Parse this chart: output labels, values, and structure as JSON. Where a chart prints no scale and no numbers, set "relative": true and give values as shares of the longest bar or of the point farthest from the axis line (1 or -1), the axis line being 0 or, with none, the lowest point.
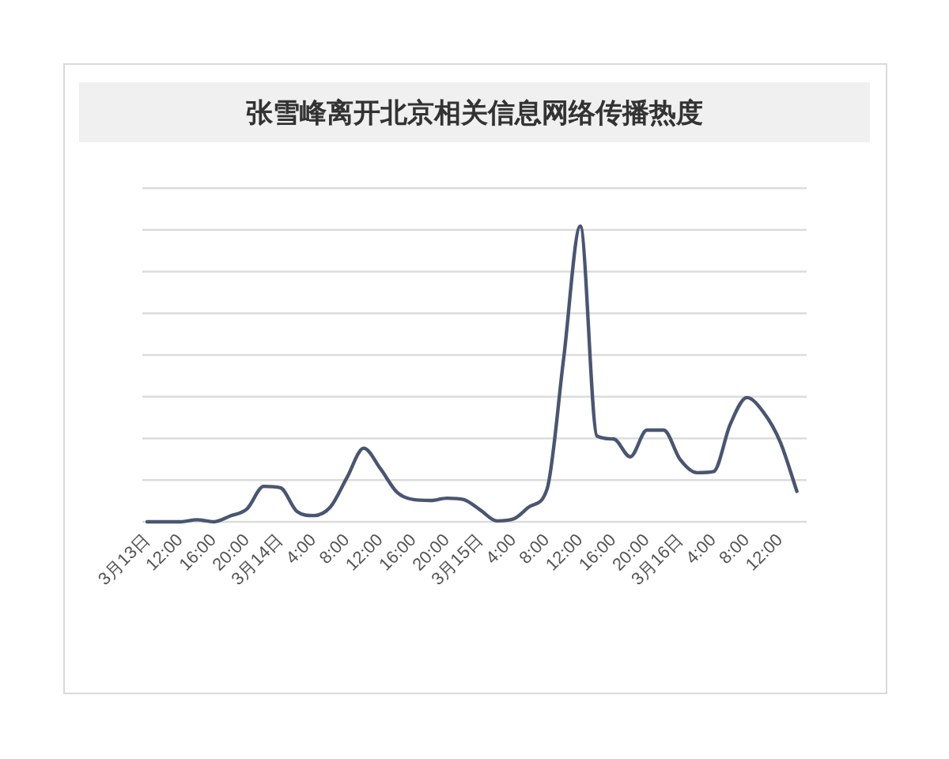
{
  "chart_data": {
    "type": "line",
    "title": "张雪峰离开北京相关信息网络传播热度",
    "relative": true,
    "grid": "y",
    "marker": "none",
    "line_style": "solid",
    "categories": [
      "3月13日",
      null,
      "12:00",
      null,
      "16:00",
      null,
      "20:00",
      null,
      "3月14日",
      null,
      "4:00",
      null,
      "8:00",
      null,
      "12:00",
      null,
      "16:00",
      null,
      "20:00",
      null,
      "3月15日",
      null,
      "4:00",
      null,
      "8:00",
      null,
      "12:00",
      null,
      "16:00",
      null,
      "20:00",
      null,
      "3月16日",
      null,
      "4:00",
      null,
      "8:00",
      null,
      "12:00",
      null
    ],
    "series": [
      {
        "color": "#4a5670",
        "values": [
          0,
          0,
          0,
          0.007,
          0,
          0.02,
          0.044,
          0.12,
          0.115,
          0.035,
          0.021,
          0.05,
          0.15,
          0.249,
          0.18,
          0.1,
          0.075,
          0.072,
          0.08,
          0.075,
          0.04,
          0.003,
          0.01,
          0.053,
          0.11,
          0.552,
          1,
          0.29,
          0.28,
          0.22,
          0.31,
          0.31,
          0.21,
          0.166,
          0.17,
          0.33,
          0.42,
          0.37,
          0.27,
          0.103
        ]
      }
    ]
  }
}
